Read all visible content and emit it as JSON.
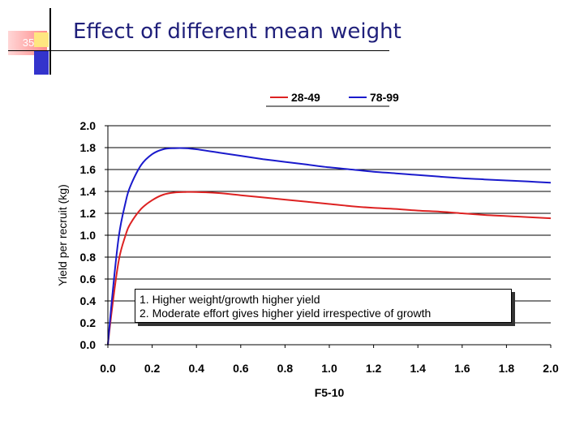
{
  "slide": {
    "number": "35",
    "title": "Effect of different mean weight"
  },
  "annotation": {
    "line1": "1. Higher weight/growth higher yield",
    "line2": "2. Moderate effort gives higher yield irrespective of growth"
  },
  "chart_data": {
    "type": "line",
    "title": "",
    "xlabel": "F5-10",
    "ylabel": "Yield per recruit (kg)",
    "xlim": [
      0.0,
      2.0
    ],
    "ylim": [
      0.0,
      2.0
    ],
    "x_ticks": [
      "0.0",
      "0.2",
      "0.4",
      "0.6",
      "0.8",
      "1.0",
      "1.2",
      "1.4",
      "1.6",
      "1.8",
      "2.0"
    ],
    "y_ticks": [
      "0.0",
      "0.2",
      "0.4",
      "0.6",
      "0.8",
      "1.0",
      "1.2",
      "1.4",
      "1.6",
      "1.8",
      "2.0"
    ],
    "grid": "horizontal",
    "legend": "top-right",
    "x": [
      0.0,
      0.02,
      0.05,
      0.08,
      0.1,
      0.15,
      0.2,
      0.25,
      0.3,
      0.35,
      0.4,
      0.5,
      0.6,
      0.7,
      0.8,
      0.9,
      1.0,
      1.1,
      1.2,
      1.3,
      1.4,
      1.5,
      1.6,
      1.7,
      1.8,
      1.9,
      2.0
    ],
    "series": [
      {
        "name": "28-49",
        "color": "#dd2222",
        "values": [
          0.0,
          0.35,
          0.78,
          1.0,
          1.1,
          1.24,
          1.32,
          1.37,
          1.39,
          1.395,
          1.395,
          1.385,
          1.365,
          1.345,
          1.325,
          1.305,
          1.285,
          1.265,
          1.25,
          1.24,
          1.225,
          1.215,
          1.2,
          1.185,
          1.175,
          1.165,
          1.155
        ]
      },
      {
        "name": "78-99",
        "color": "#1a1acc",
        "values": [
          0.0,
          0.45,
          1.0,
          1.3,
          1.44,
          1.64,
          1.74,
          1.785,
          1.795,
          1.795,
          1.785,
          1.755,
          1.725,
          1.695,
          1.67,
          1.645,
          1.62,
          1.6,
          1.58,
          1.565,
          1.55,
          1.535,
          1.52,
          1.51,
          1.5,
          1.49,
          1.48
        ]
      }
    ]
  }
}
